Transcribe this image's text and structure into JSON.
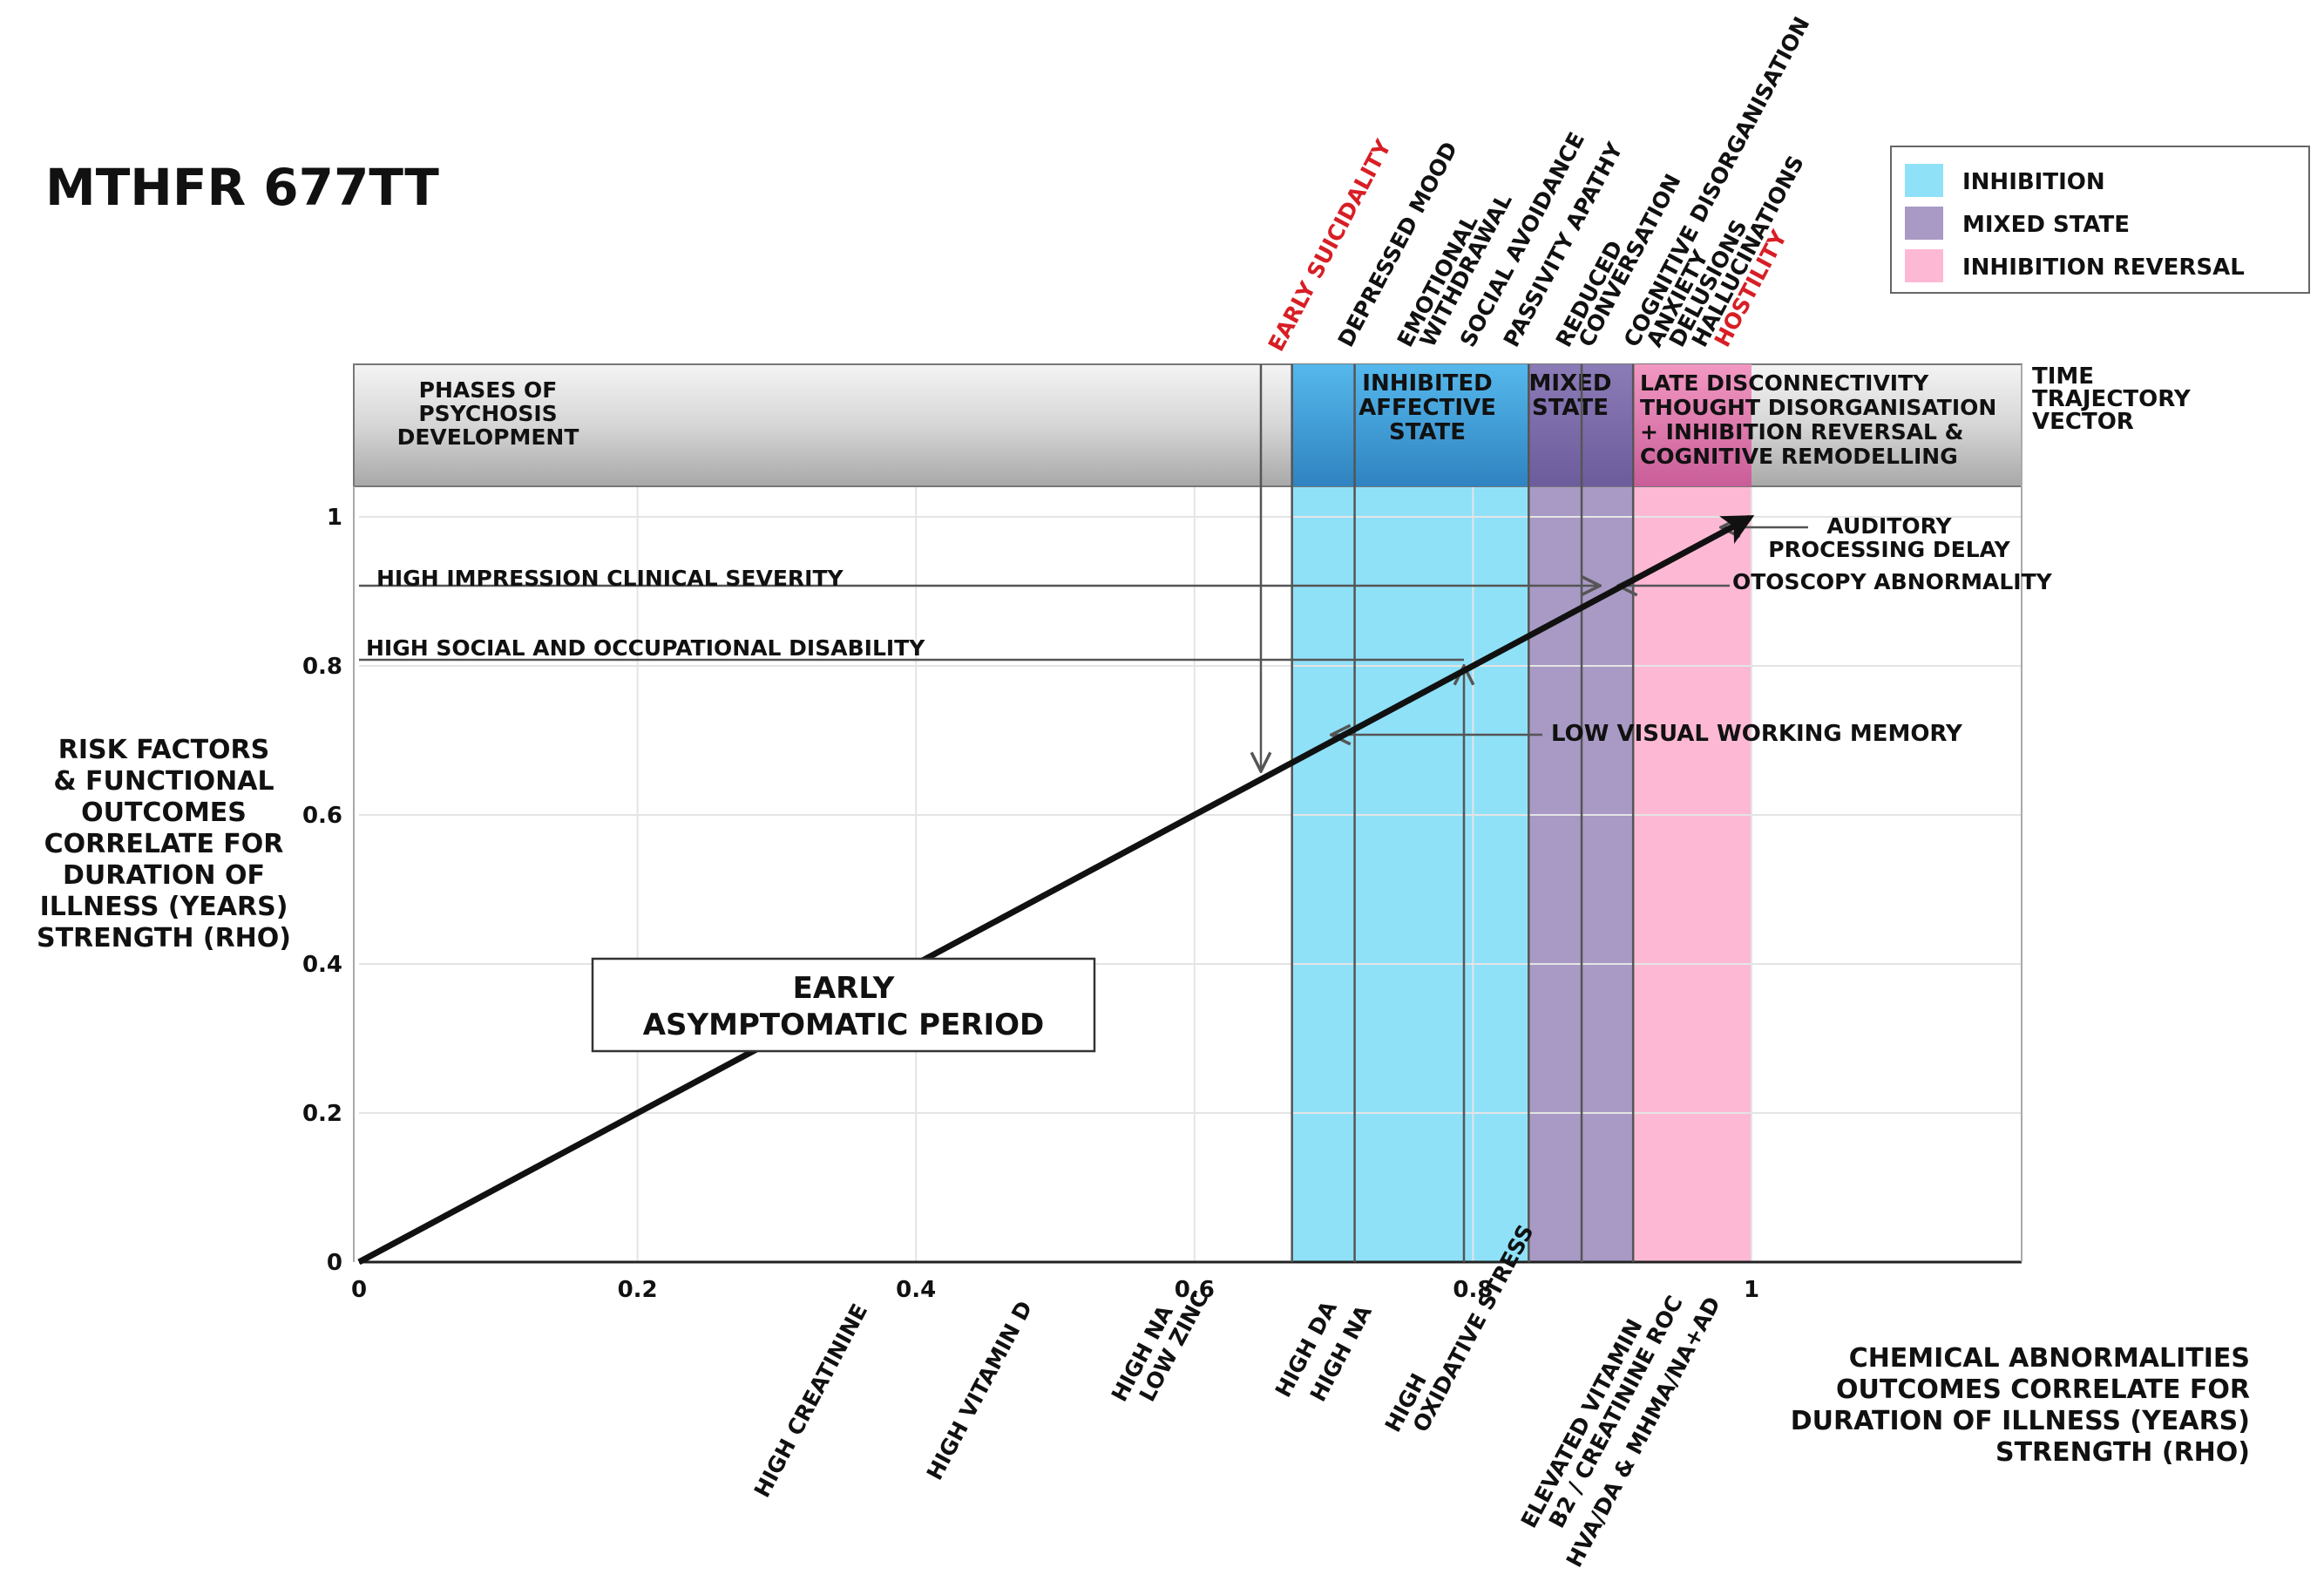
{
  "title": "MTHFR 677TT",
  "legend": [
    {
      "label": "INHIBITION",
      "color": "#8fe1f8"
    },
    {
      "label": "MIXED STATE",
      "color": "#a89ac4"
    },
    {
      "label": "INHIBITION REVERSAL",
      "color": "#fdb9d4"
    }
  ],
  "phases": {
    "intro": [
      "PHASES OF",
      "PSYCHOSIS",
      "DEVELOPMENT"
    ],
    "inhibited": [
      "INHIBITED",
      "AFFECTIVE",
      "STATE"
    ],
    "mixed": [
      "MIXED",
      "STATE"
    ],
    "late": [
      "LATE DISCONNECTIVITY",
      "THOUGHT DISORGANISATION",
      "+ INHIBITION REVERSAL &",
      "COGNITIVE REMODELLING"
    ],
    "vector": [
      "TIME",
      "TRAJECTORY",
      "VECTOR"
    ]
  },
  "y_axis_title": [
    "RISK FACTORS",
    "& FUNCTIONAL",
    "OUTCOMES",
    "CORRELATE FOR",
    "DURATION OF",
    "ILLNESS (YEARS)",
    "STRENGTH (RHO)"
  ],
  "x_axis_title": [
    "CHEMICAL ABNORMALITIES",
    "OUTCOMES CORRELATE FOR",
    "DURATION OF ILLNESS (YEARS)",
    "STRENGTH (RHO)"
  ],
  "chart_data": {
    "type": "line",
    "x": [
      0,
      1
    ],
    "y": [
      0,
      1
    ],
    "xlim": [
      0,
      1.2
    ],
    "ylim": [
      0,
      1
    ],
    "x_ticks": [
      "0",
      "0.2",
      "0.4",
      "0.6",
      "0.8",
      "1"
    ],
    "y_ticks": [
      "0",
      "0.2",
      "0.4",
      "0.6",
      "0.8",
      "1"
    ],
    "series_name": "EARLY ASYMPTOMATIC PERIOD",
    "bands": [
      {
        "name": "INHIBITION",
        "from": 0.67,
        "to": 0.84
      },
      {
        "name": "MIXED STATE",
        "from": 0.84,
        "to": 0.915
      },
      {
        "name": "INHIBITION REVERSAL",
        "from": 0.915,
        "to": 1.0
      }
    ]
  },
  "period_box": [
    "EARLY",
    "ASYMPTOMATIC PERIOD"
  ],
  "top_labels": [
    {
      "lines": [
        "EARLY SUICIDALITY"
      ],
      "red": [
        true
      ]
    },
    {
      "lines": [
        "DEPRESSED MOOD"
      ],
      "red": [
        false
      ]
    },
    {
      "lines": [
        "EMOTIONAL",
        "WITHDRAWAL"
      ],
      "red": [
        false,
        false
      ]
    },
    {
      "lines": [
        "SOCIAL AVOIDANCE"
      ],
      "red": [
        false
      ]
    },
    {
      "lines": [
        "PASSIVITY APATHY"
      ],
      "red": [
        false
      ]
    },
    {
      "lines": [
        "REDUCED",
        "CONVERSATION"
      ],
      "red": [
        false,
        false
      ]
    },
    {
      "lines": [
        "COGNITIVE DISORGANISATION",
        "ANXIETY",
        "DELUSIONS",
        "HALLUCINATIONS",
        "HOSTILITY"
      ],
      "red": [
        false,
        false,
        false,
        false,
        true
      ]
    }
  ],
  "bottom_labels": [
    {
      "lines": [
        "HIGH CREATININE"
      ]
    },
    {
      "lines": [
        "HIGH VITAMIN D"
      ]
    },
    {
      "lines": [
        "HIGH NA",
        "LOW ZINC"
      ]
    },
    {
      "lines": [
        "HIGH DA"
      ]
    },
    {
      "lines": [
        "HIGH NA"
      ]
    },
    {
      "lines": [
        "HIGH",
        "OXIDATIVE STRESS"
      ]
    },
    {
      "lines": [
        "ELEVATED VITAMIN",
        "B2 / CREATININE ROC"
      ]
    },
    {
      "lines": [
        "HVA/DA & MHMA/NA+AD"
      ]
    }
  ],
  "annotations": {
    "clinical_severity": "HIGH IMPRESSION CLINICAL SEVERITY",
    "social_disability": "HIGH SOCIAL AND OCCUPATIONAL DISABILITY",
    "auditory": [
      "AUDITORY",
      "PROCESSING DELAY"
    ],
    "otoscopy": "OTOSCOPY ABNORMALITY",
    "visual_memory": "LOW VISUAL WORKING MEMORY"
  }
}
